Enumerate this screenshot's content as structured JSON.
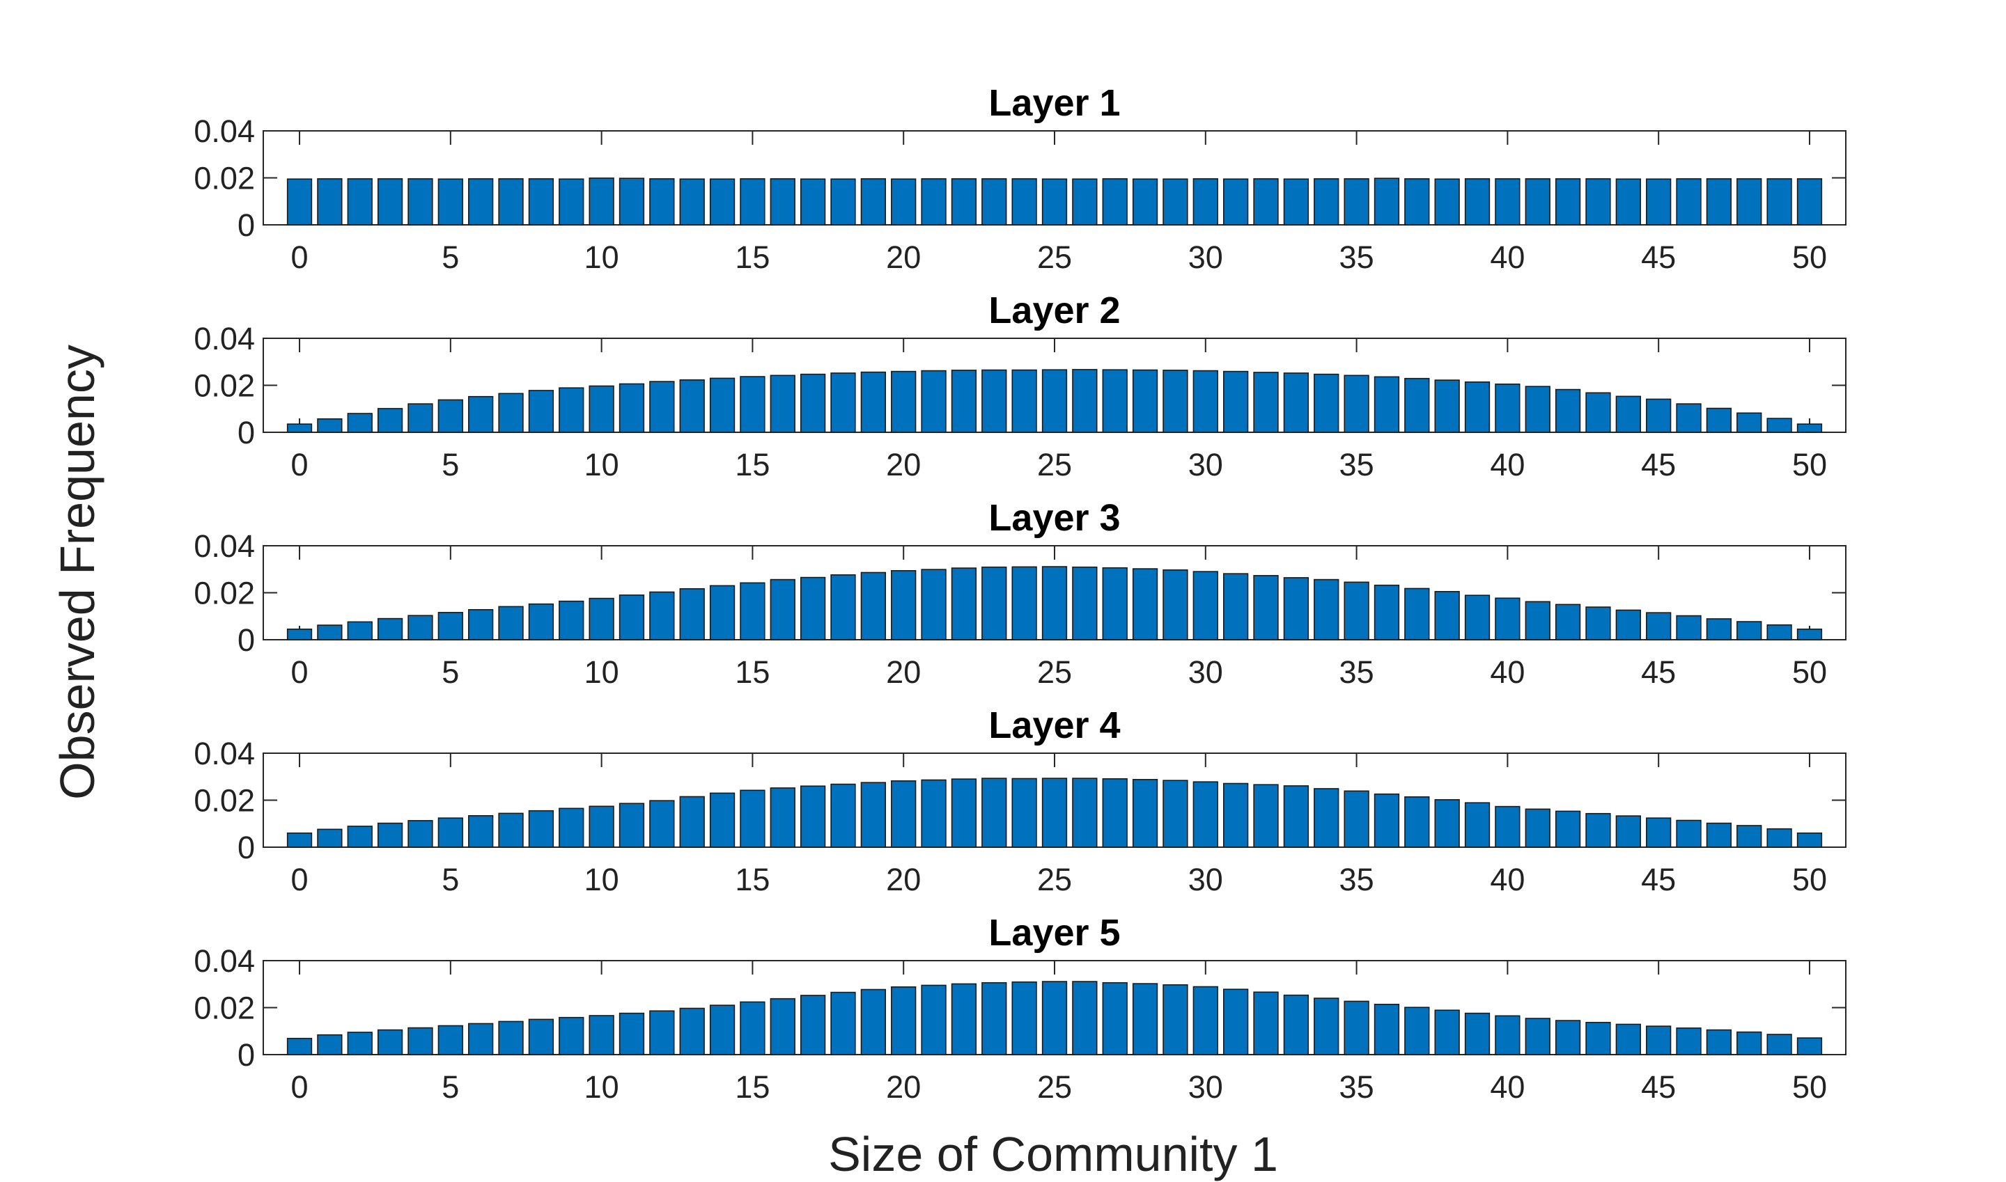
{
  "chart_data": {
    "type": "bar",
    "xlabel": "Size of Community 1",
    "ylabel": "Observed Frequency",
    "color": "#0072BD",
    "categories": [
      0,
      1,
      2,
      3,
      4,
      5,
      6,
      7,
      8,
      9,
      10,
      11,
      12,
      13,
      14,
      15,
      16,
      17,
      18,
      19,
      20,
      21,
      22,
      23,
      24,
      25,
      26,
      27,
      28,
      29,
      30,
      31,
      32,
      33,
      34,
      35,
      36,
      37,
      38,
      39,
      40,
      41,
      42,
      43,
      44,
      45,
      46,
      47,
      48,
      49,
      50
    ],
    "xticks": [
      0,
      5,
      10,
      15,
      20,
      25,
      30,
      35,
      40,
      45,
      50
    ],
    "xtick_labels": [
      "0",
      "5",
      "10",
      "15",
      "20",
      "25",
      "30",
      "35",
      "40",
      "45",
      "50"
    ],
    "yticks": [
      0,
      0.02,
      0.04
    ],
    "ytick_labels": [
      "0",
      "0.02",
      "0.04"
    ],
    "ylim": [
      0,
      0.04
    ],
    "xlim": [
      -1.2,
      51.2
    ],
    "panels": [
      {
        "title": "Layer 1",
        "values": [
          0.0195,
          0.0196,
          0.0196,
          0.0196,
          0.0196,
          0.0195,
          0.0196,
          0.0196,
          0.0196,
          0.0195,
          0.0199,
          0.0198,
          0.0196,
          0.0195,
          0.0195,
          0.0196,
          0.0196,
          0.0195,
          0.0195,
          0.0196,
          0.0195,
          0.0196,
          0.0196,
          0.0196,
          0.0196,
          0.0195,
          0.0195,
          0.0196,
          0.0195,
          0.0195,
          0.0196,
          0.0195,
          0.0196,
          0.0195,
          0.0196,
          0.0196,
          0.0198,
          0.0196,
          0.0195,
          0.0196,
          0.0196,
          0.0196,
          0.0196,
          0.0196,
          0.0195,
          0.0195,
          0.0196,
          0.0196,
          0.0196,
          0.0196,
          0.0196
        ]
      },
      {
        "title": "Layer 2",
        "values": [
          0.0035,
          0.0057,
          0.008,
          0.0101,
          0.0121,
          0.0138,
          0.0152,
          0.0165,
          0.0178,
          0.0189,
          0.0197,
          0.0206,
          0.0216,
          0.0223,
          0.023,
          0.0237,
          0.0242,
          0.0247,
          0.0252,
          0.0256,
          0.0259,
          0.0262,
          0.0264,
          0.0265,
          0.0265,
          0.0266,
          0.0267,
          0.0266,
          0.0265,
          0.0264,
          0.0262,
          0.0259,
          0.0255,
          0.0252,
          0.0247,
          0.0242,
          0.0236,
          0.0229,
          0.0222,
          0.0214,
          0.0205,
          0.0195,
          0.0182,
          0.0168,
          0.0153,
          0.0141,
          0.0121,
          0.0102,
          0.0082,
          0.0059,
          0.0035
        ]
      },
      {
        "title": "Layer 3",
        "values": [
          0.0045,
          0.0062,
          0.0076,
          0.009,
          0.0103,
          0.0116,
          0.0128,
          0.0141,
          0.0152,
          0.0164,
          0.0176,
          0.019,
          0.0203,
          0.0217,
          0.023,
          0.0242,
          0.0256,
          0.0265,
          0.0276,
          0.0286,
          0.0294,
          0.0299,
          0.0305,
          0.0309,
          0.031,
          0.0311,
          0.0309,
          0.0306,
          0.0302,
          0.0297,
          0.029,
          0.0281,
          0.0273,
          0.0264,
          0.0256,
          0.0245,
          0.0232,
          0.0218,
          0.0205,
          0.0189,
          0.0177,
          0.0162,
          0.015,
          0.0139,
          0.0126,
          0.0115,
          0.0102,
          0.0089,
          0.0077,
          0.0063,
          0.0045
        ]
      },
      {
        "title": "Layer 4",
        "values": [
          0.006,
          0.0076,
          0.0089,
          0.0102,
          0.0113,
          0.0124,
          0.0134,
          0.0144,
          0.0155,
          0.0165,
          0.0174,
          0.0186,
          0.0198,
          0.0215,
          0.023,
          0.0242,
          0.0252,
          0.026,
          0.0268,
          0.0275,
          0.0282,
          0.0286,
          0.029,
          0.0293,
          0.0292,
          0.0293,
          0.0293,
          0.0291,
          0.0288,
          0.0284,
          0.0278,
          0.0271,
          0.0266,
          0.0261,
          0.0249,
          0.0239,
          0.0226,
          0.0214,
          0.0202,
          0.0189,
          0.0173,
          0.0162,
          0.0153,
          0.0143,
          0.0133,
          0.0124,
          0.0114,
          0.0102,
          0.0092,
          0.0078,
          0.006
        ]
      },
      {
        "title": "Layer 5",
        "values": [
          0.0069,
          0.0084,
          0.0095,
          0.0105,
          0.0114,
          0.0123,
          0.0132,
          0.0141,
          0.015,
          0.0158,
          0.0166,
          0.0176,
          0.0186,
          0.0197,
          0.021,
          0.0224,
          0.0238,
          0.0252,
          0.0265,
          0.0277,
          0.0288,
          0.0295,
          0.0301,
          0.0306,
          0.0309,
          0.0311,
          0.0311,
          0.0306,
          0.0302,
          0.0297,
          0.0289,
          0.0278,
          0.0266,
          0.0253,
          0.024,
          0.0227,
          0.0214,
          0.0201,
          0.0189,
          0.0176,
          0.0165,
          0.0154,
          0.0145,
          0.0137,
          0.0129,
          0.0121,
          0.0113,
          0.0105,
          0.0096,
          0.0086,
          0.0071
        ]
      }
    ]
  }
}
